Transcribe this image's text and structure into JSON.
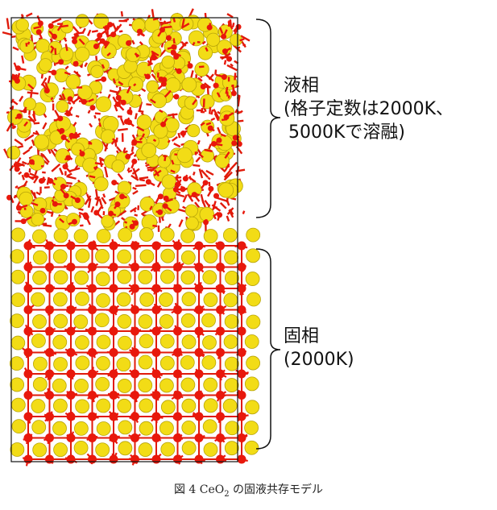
{
  "colors": {
    "cerium_atom": "#f2dc16",
    "cerium_outline": "#b8a50a",
    "oxygen_atom": "#e8180c",
    "bond": "#e01a0a",
    "frame": "#111111"
  },
  "labels": {
    "liquid": {
      "line1": "液相",
      "line2": "(格子定数は2000K、",
      "line3": "5000Kで溶融)"
    },
    "solid": {
      "line1": "固相",
      "line2": "(2000K)"
    }
  },
  "caption": {
    "prefix": "図 4 CeO",
    "subscript": "2",
    "suffix": " の固液共存モデル"
  }
}
